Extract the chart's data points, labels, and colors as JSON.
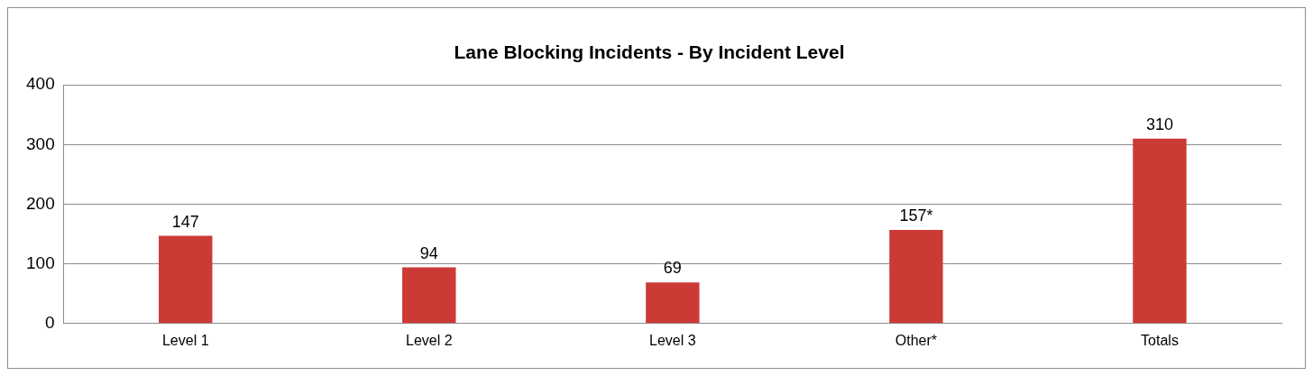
{
  "chart_data": {
    "type": "bar",
    "title": "Lane Blocking Incidents - By Incident Level",
    "categories": [
      "Level 1",
      "Level 2",
      "Level 3",
      "Other*",
      "Totals"
    ],
    "values": [
      147,
      94,
      69,
      157,
      310
    ],
    "value_labels": [
      "147",
      "94",
      "69",
      "157*",
      "310"
    ],
    "color": "#cc3a36",
    "ylim": [
      0,
      400
    ],
    "yticks": [
      0,
      100,
      200,
      300,
      400
    ],
    "grid": "y",
    "legend": false
  }
}
